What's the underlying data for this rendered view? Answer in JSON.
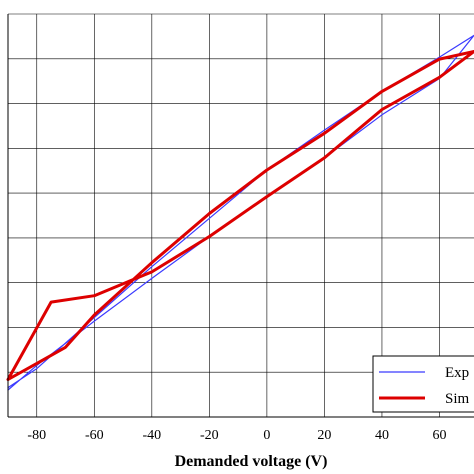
{
  "chart_data": {
    "type": "line",
    "xlabel": "Demanded voltage (V)",
    "ylabel": "",
    "title": "",
    "xlim": [
      -90,
      72
    ],
    "ylim": [
      0,
      1
    ],
    "xticks": [
      -80,
      -60,
      -40,
      -20,
      0,
      20,
      40,
      60
    ],
    "grid": true,
    "legend": {
      "placement": "bottom-right",
      "entries": [
        "Exp",
        "Sim"
      ]
    },
    "series": [
      {
        "name": "Exp",
        "color": "#3b3bff",
        "x": [
          -90,
          -80,
          -60,
          -40,
          -20,
          0,
          20,
          40,
          60,
          72,
          60,
          40,
          20,
          0,
          -20,
          -40,
          -60,
          -80,
          -90
        ],
        "y": [
          0.073,
          0.12,
          0.247,
          0.373,
          0.493,
          0.613,
          0.712,
          0.808,
          0.893,
          0.947,
          0.84,
          0.75,
          0.643,
          0.547,
          0.448,
          0.344,
          0.238,
          0.128,
          0.067
        ]
      },
      {
        "name": "Sim",
        "color": "#dd0000",
        "x": [
          -90,
          -80,
          -70,
          -60,
          -40,
          -20,
          0,
          20,
          40,
          60,
          72,
          60,
          40,
          20,
          0,
          -20,
          -40,
          -60,
          -75,
          -90
        ],
        "y": [
          0.093,
          0.133,
          0.173,
          0.253,
          0.383,
          0.505,
          0.613,
          0.704,
          0.808,
          0.888,
          0.907,
          0.843,
          0.763,
          0.643,
          0.547,
          0.448,
          0.36,
          0.301,
          0.285,
          0.093
        ]
      }
    ]
  }
}
